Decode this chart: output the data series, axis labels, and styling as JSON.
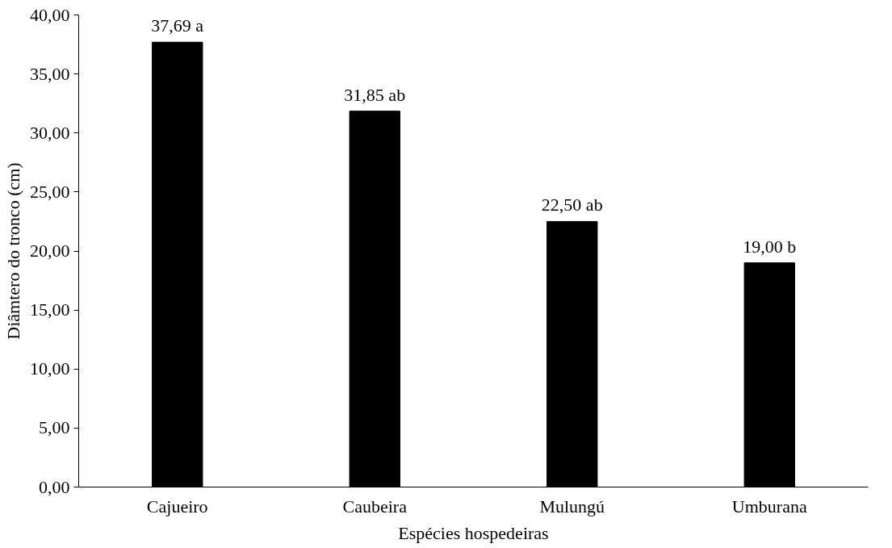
{
  "chart_data": {
    "type": "bar",
    "xlabel": "Espécies hospedeiras",
    "ylabel": "Diâmtero do tronco (cm)",
    "categories": [
      "Cajueiro",
      "Caubeira",
      "Mulungú",
      "Umburana"
    ],
    "values": [
      37.69,
      31.85,
      22.5,
      19.0
    ],
    "value_labels": [
      "37,69 a",
      "31,85 ab",
      "22,50 ab",
      "19,00 b"
    ],
    "color": "#000000",
    "ylim": [
      0,
      40
    ],
    "yticks": [
      {
        "value": 0,
        "label": "0,00"
      },
      {
        "value": 5,
        "label": "5,00"
      },
      {
        "value": 10,
        "label": "10,00"
      },
      {
        "value": 15,
        "label": "15,00"
      },
      {
        "value": 20,
        "label": "20,00"
      },
      {
        "value": 25,
        "label": "25,00"
      },
      {
        "value": 30,
        "label": "30,00"
      },
      {
        "value": 35,
        "label": "35,00"
      },
      {
        "value": 40,
        "label": "40,00"
      }
    ],
    "grid": false
  }
}
